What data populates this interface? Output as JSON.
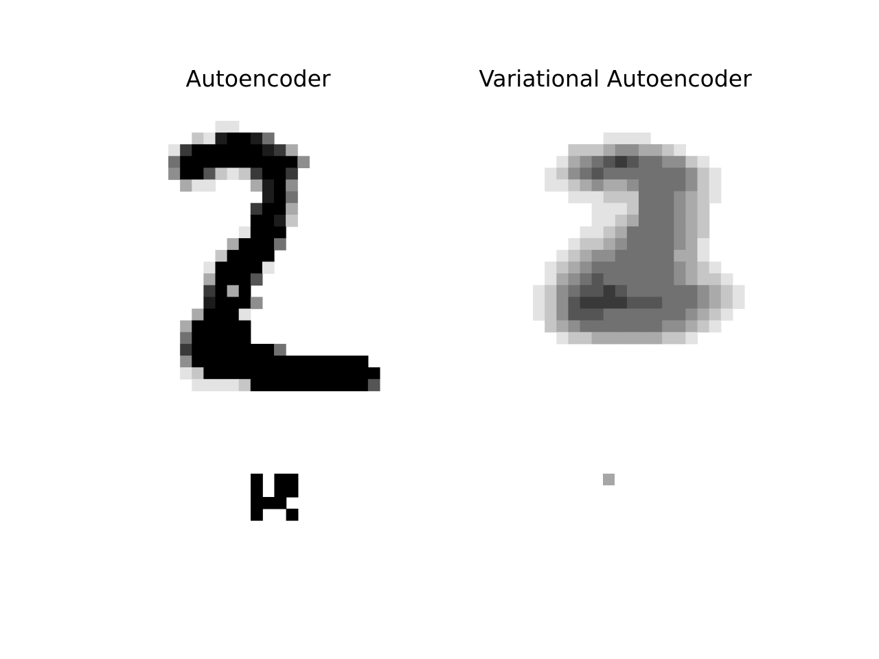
{
  "chart_data": {
    "type": "heatmap",
    "colormap": "grayscale-inverted",
    "value_range": [
      0,
      1
    ],
    "panels": [
      {
        "title": "Autoencoder",
        "image_rows": [
          "0000000000000000000000",
          "00000050000000000000000",
          "00000000000000000000000",
          "0000000000000000000000"
        ],
        "image": [
          "......11..............",
          "...2.8999850..........",
          ".17999999980..........",
          "58999999999599........",
          "89976227997.6.........",
          ".2............"
        ],
        "code": [
          [
            1,
            0,
            1,
            1
          ],
          [
            1,
            0,
            1,
            1
          ],
          [
            1,
            1,
            1,
            0
          ],
          [
            1,
            0,
            0,
            1
          ]
        ]
      }
    ]
  }
}
